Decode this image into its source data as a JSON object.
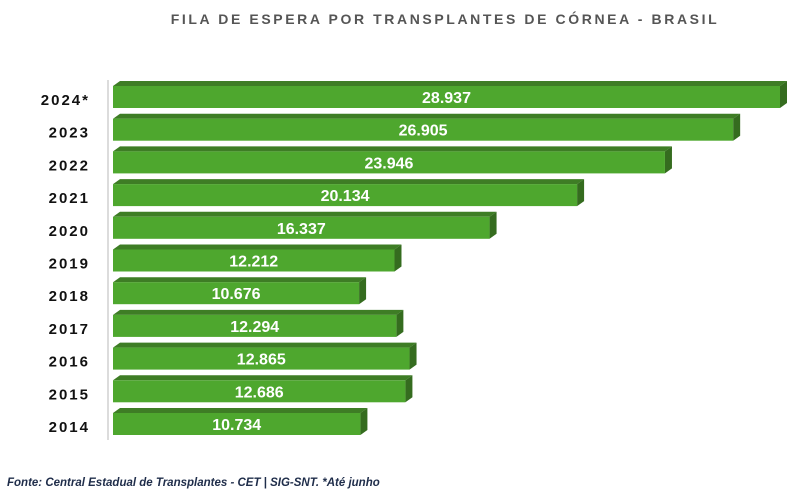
{
  "title": "FILA DE ESPERA POR TRANSPLANTES DE CÓRNEA - BRASIL",
  "source": "Fonte: Central Estadual de Transplantes - CET | SIG-SNT. *Até junho",
  "colors": {
    "bar_face": "#4ea72e",
    "bar_top": "#3e7d25",
    "bar_side": "#356c1f",
    "label": "#ffffff",
    "axis": "#d0d0d0"
  },
  "chart_data": {
    "type": "bar",
    "orientation": "horizontal",
    "style": "3d",
    "title": "FILA DE ESPERA POR TRANSPLANTES DE CÓRNEA - BRASIL",
    "xlabel": "",
    "ylabel": "",
    "grid": false,
    "legend": "none",
    "categories": [
      "2024*",
      "2023",
      "2022",
      "2021",
      "2020",
      "2019",
      "2018",
      "2017",
      "2016",
      "2015",
      "2014"
    ],
    "values": [
      28937,
      26905,
      23946,
      20134,
      16337,
      12212,
      10676,
      12294,
      12865,
      12686,
      10734
    ],
    "data_labels": [
      "28.937",
      "26.905",
      "23.946",
      "20.134",
      "16.337",
      "12.212",
      "10.676",
      "12.294",
      "12.865",
      "12.686",
      "10.734"
    ],
    "xlim": [
      0,
      28937
    ]
  }
}
